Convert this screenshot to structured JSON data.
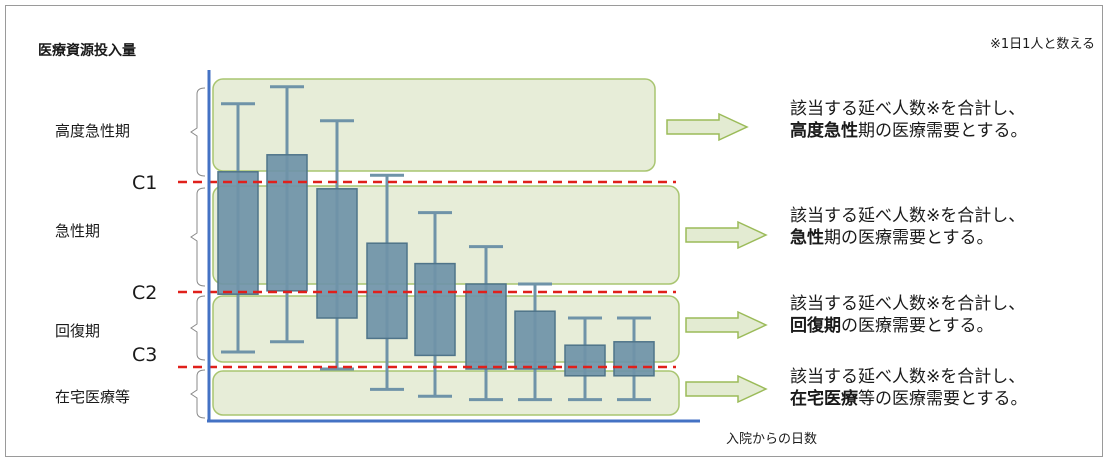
{
  "y_axis_title": "医療資源投入量",
  "note": "※1日1人と数える",
  "x_axis_title": "入院からの日数",
  "phases": [
    {
      "label": "高度急性期",
      "name": "高度急性",
      "suffix": "期"
    },
    {
      "label": "急性期",
      "name": "急性",
      "suffix": "期"
    },
    {
      "label": "回復期",
      "name": "回復期",
      "suffix": ""
    },
    {
      "label": "在宅医療等",
      "name": "在宅医療",
      "suffix": "等"
    }
  ],
  "cutoffs": [
    "C1",
    "C2",
    "C3"
  ],
  "result_line1": "該当する延べ人数※を合計し、",
  "result_tail": "の医療需要とする。",
  "colors": {
    "band_fill": "#e3ebd2",
    "band_stroke": "#9bbb59",
    "box_fill": "#6f93a8",
    "box_stroke": "#4f7489",
    "cut_line": "#e0201b",
    "axis": "#4472c4"
  },
  "chart_data": {
    "type": "boxplot",
    "boxes": [
      {
        "whisker_high": 0.93,
        "q3": 0.73,
        "q1": 0.37,
        "whisker_low": 0.2
      },
      {
        "whisker_high": 0.98,
        "q3": 0.78,
        "q1": 0.38,
        "whisker_low": 0.23
      },
      {
        "whisker_high": 0.88,
        "q3": 0.68,
        "q1": 0.3,
        "whisker_low": 0.15
      },
      {
        "whisker_high": 0.72,
        "q3": 0.52,
        "q1": 0.24,
        "whisker_low": 0.09
      },
      {
        "whisker_high": 0.61,
        "q3": 0.46,
        "q1": 0.19,
        "whisker_low": 0.07
      },
      {
        "whisker_high": 0.51,
        "q3": 0.4,
        "q1": 0.15,
        "whisker_low": 0.06
      },
      {
        "whisker_high": 0.4,
        "q3": 0.32,
        "q1": 0.15,
        "whisker_low": 0.06
      },
      {
        "whisker_high": 0.3,
        "q3": 0.22,
        "q1": 0.13,
        "whisker_low": 0.06
      },
      {
        "whisker_high": 0.3,
        "q3": 0.23,
        "q1": 0.13,
        "whisker_low": 0.06
      }
    ]
  }
}
